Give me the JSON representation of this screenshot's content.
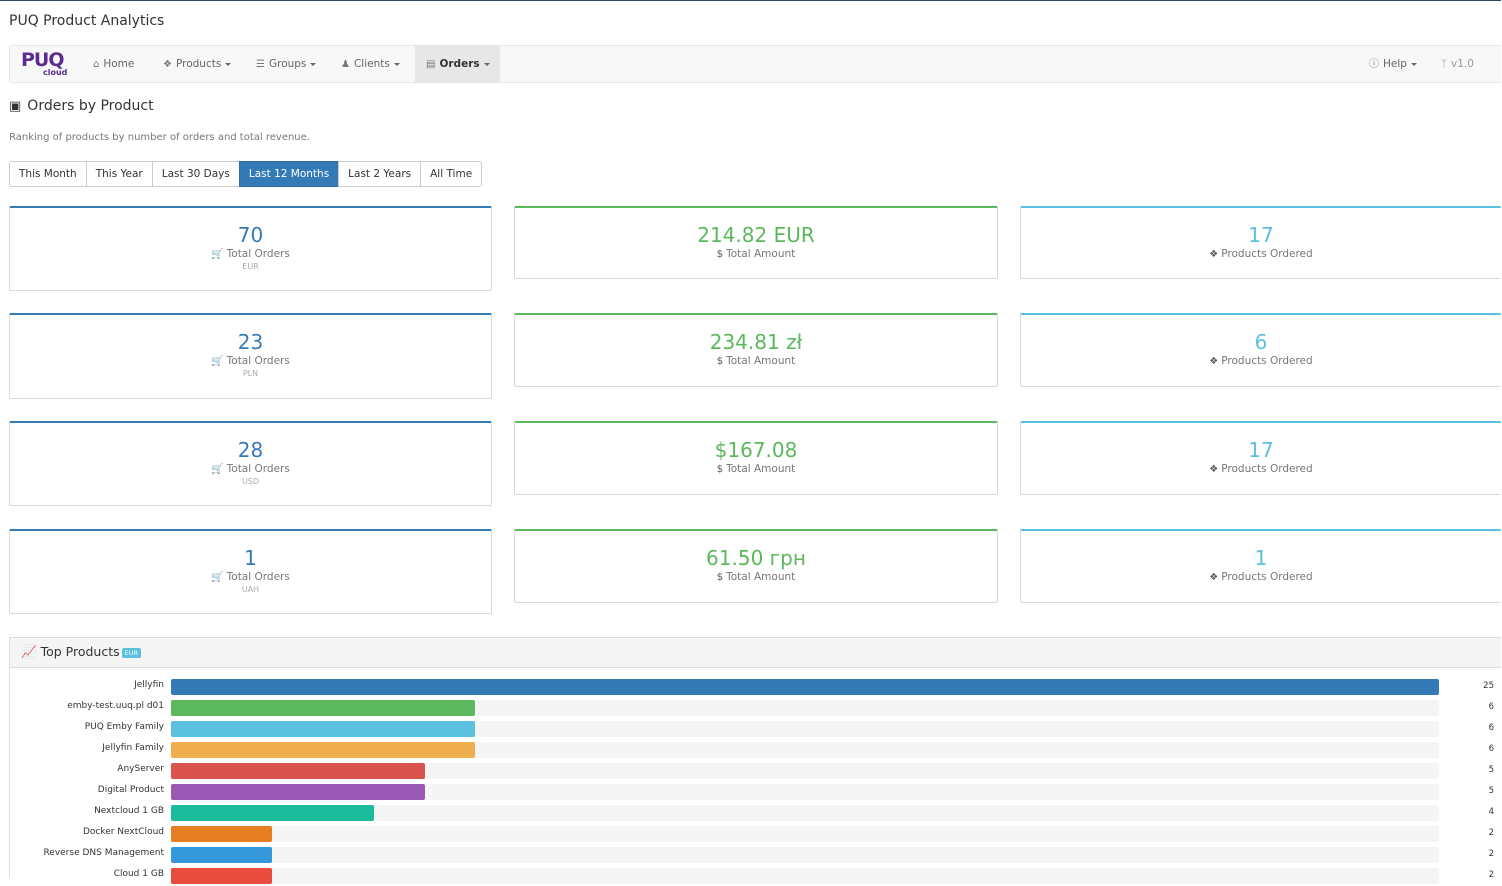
{
  "app_title": "PUQ Product Analytics",
  "navbar": {
    "logo_text": "PUQ",
    "logo_sub": "cloud",
    "items": [
      {
        "label": "Home",
        "icon": "home-icon"
      },
      {
        "label": "Products",
        "icon": "cubes-icon"
      },
      {
        "label": "Groups",
        "icon": "layers-icon"
      },
      {
        "label": "Clients",
        "icon": "users-icon"
      },
      {
        "label": "Orders",
        "icon": "cart-icon"
      }
    ],
    "help_label": "Help",
    "version_label": "v1.0"
  },
  "page": {
    "title": "Orders by Product",
    "subtitle": "Ranking of products by number of orders and total revenue."
  },
  "filters": [
    "This Month",
    "This Year",
    "Last 30 Days",
    "Last 12 Months",
    "Last 2 Years",
    "All Time"
  ],
  "active_filter": "Last 12 Months",
  "stats": [
    {
      "orders": "70",
      "orders_label": "Total Orders",
      "currency": "EUR",
      "amount": "214.82 EUR",
      "amount_label": "Total Amount",
      "products": "17",
      "products_label": "Products Ordered"
    },
    {
      "orders": "23",
      "orders_label": "Total Orders",
      "currency": "PLN",
      "amount": "234.81 zł",
      "amount_label": "Total Amount",
      "products": "6",
      "products_label": "Products Ordered"
    },
    {
      "orders": "28",
      "orders_label": "Total Orders",
      "currency": "USD",
      "amount": "$167.08",
      "amount_label": "Total Amount",
      "products": "17",
      "products_label": "Products Ordered"
    },
    {
      "orders": "1",
      "orders_label": "Total Orders",
      "currency": "UAH",
      "amount": "61.50 грн",
      "amount_label": "Total Amount",
      "products": "1",
      "products_label": "Products Ordered"
    }
  ],
  "top_products": {
    "title": "Top Products",
    "badge": "EUR"
  },
  "colors": {
    "primary": "#337ab7",
    "success": "#5cb85c",
    "info": "#5bc0de"
  },
  "chart_data": {
    "type": "bar",
    "orientation": "horizontal",
    "title": "Top Products",
    "xlim": [
      0,
      25
    ],
    "categories": [
      "Jellyfin",
      "emby-test.uuq.pl d01",
      "PUQ Emby Family",
      "Jellyfin Family",
      "AnyServer",
      "Digital Product",
      "Nextcloud 1 GB",
      "Docker NextCloud",
      "Reverse DNS Management",
      "Cloud 1 GB"
    ],
    "values": [
      25,
      6,
      6,
      6,
      5,
      5,
      4,
      2,
      2,
      2
    ],
    "value_labels": [
      "25",
      "6",
      "6",
      "6",
      "5",
      "5",
      "4",
      "2",
      "2",
      "2"
    ],
    "colors": [
      "#337ab7",
      "#5cb85c",
      "#5bc0de",
      "#f0ad4e",
      "#d9534f",
      "#9b59b6",
      "#1abc9c",
      "#e67e22",
      "#3498db",
      "#e74c3c"
    ]
  }
}
